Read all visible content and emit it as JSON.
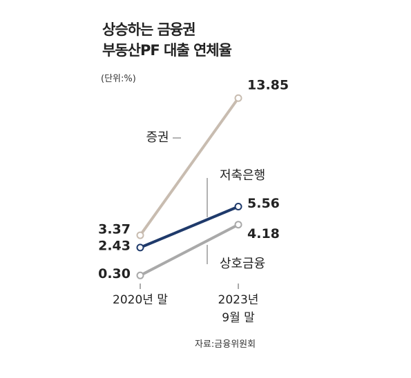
{
  "chart_data": {
    "type": "line",
    "title": "상승하는 금융권\n부동산PF 대출 연체율",
    "subtitle": "(단위:%)",
    "source": "자료:금융위원회",
    "categories": [
      "2020년 말",
      "2023년 9월 말"
    ],
    "ylim": [
      0,
      14
    ],
    "series": [
      {
        "name": "증권",
        "color": "#c8bcb0",
        "values": [
          3.37,
          13.85
        ],
        "value_labels": [
          "3.37",
          "13.85"
        ]
      },
      {
        "name": "저축은행",
        "color": "#1f3a6b",
        "values": [
          2.43,
          5.56
        ],
        "value_labels": [
          "2.43",
          "5.56"
        ]
      },
      {
        "name": "상호금융",
        "color": "#a9a9a9",
        "values": [
          0.3,
          4.18
        ],
        "value_labels": [
          "0.30",
          "4.18"
        ]
      }
    ]
  }
}
